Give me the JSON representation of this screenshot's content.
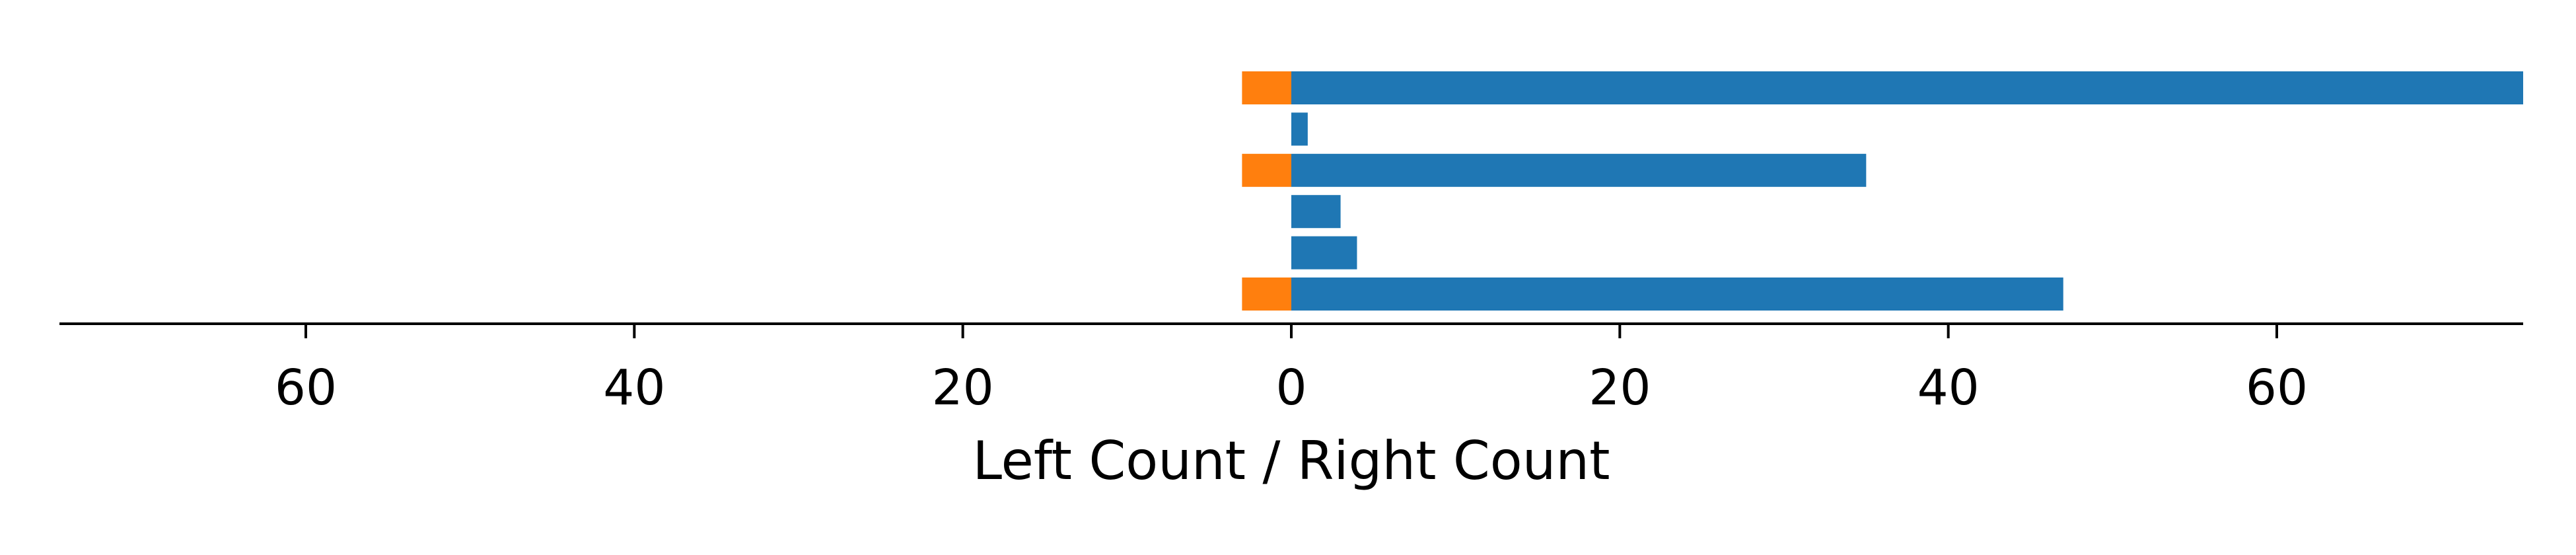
{
  "chart_data": {
    "type": "bar",
    "orientation": "horizontal",
    "diverging": true,
    "xlabel": "Left Count / Right Count",
    "xlim": [
      -75,
      75
    ],
    "x_ticks": [
      -60,
      -40,
      -20,
      0,
      20,
      40,
      60
    ],
    "x_tick_labels": [
      "60",
      "40",
      "20",
      "0",
      "20",
      "40",
      "60"
    ],
    "categories": [
      "",
      "",
      "",
      "",
      "",
      ""
    ],
    "series": [
      {
        "side": "right",
        "color": "#1f77b4",
        "values": [
          75,
          1,
          35,
          3,
          4,
          47
        ]
      },
      {
        "side": "left",
        "color": "#ff7f0e",
        "values": [
          3,
          0,
          3,
          0,
          0,
          3
        ]
      }
    ],
    "grid": false,
    "legend": "none"
  }
}
